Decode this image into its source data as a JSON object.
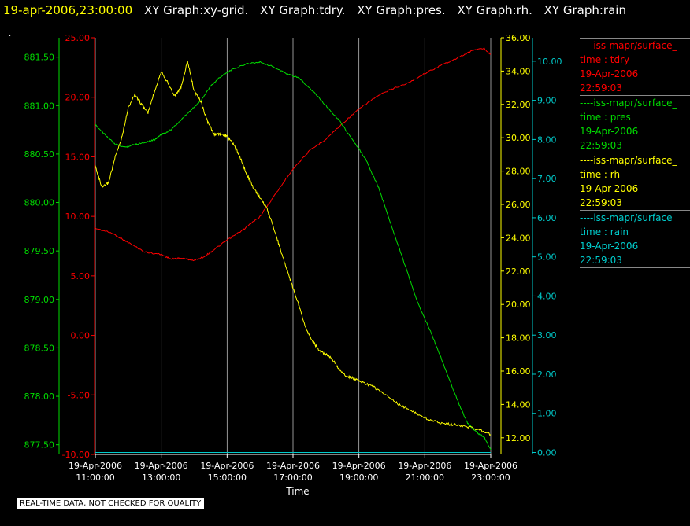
{
  "header": {
    "timestamp": "19-apr-2006,23:00:00",
    "graph_titles": [
      "XY Graph:xy-grid.",
      "XY Graph:tdry.",
      "XY Graph:pres.",
      "XY Graph:rh.",
      "XY Graph:rain"
    ]
  },
  "marker_text": ".",
  "quality_note": "REAL-TIME DATA, NOT CHECKED FOR QUALITY",
  "colors": {
    "tdry": "#ff0000",
    "pres": "#00dd00",
    "rh": "#ffff00",
    "rain": "#00cccc",
    "grid": "#bbbbbb"
  },
  "legend": [
    {
      "label": "----iss-mapr/surface_",
      "var": "time : tdry",
      "date": "19-Apr-2006",
      "time": "22:59:03",
      "color": "#ff0000"
    },
    {
      "label": "----iss-mapr/surface_",
      "var": "time : pres",
      "date": "19-Apr-2006",
      "time": "22:59:03",
      "color": "#00dd00"
    },
    {
      "label": "----iss-mapr/surface_",
      "var": "time : rh",
      "date": "19-Apr-2006",
      "time": "22:59:03",
      "color": "#ffff00"
    },
    {
      "label": "----iss-mapr/surface_",
      "var": "time : rain",
      "date": "19-Apr-2006",
      "time": "22:59:03",
      "color": "#00cccc"
    }
  ],
  "chart_data": {
    "type": "line",
    "xlabel": "Time",
    "xlim": [
      11,
      23
    ],
    "x_ticks": [
      {
        "x": 11,
        "date": "19-Apr-2006",
        "time": "11:00:00"
      },
      {
        "x": 13,
        "date": "19-Apr-2006",
        "time": "13:00:00"
      },
      {
        "x": 15,
        "date": "19-Apr-2006",
        "time": "15:00:00"
      },
      {
        "x": 17,
        "date": "19-Apr-2006",
        "time": "17:00:00"
      },
      {
        "x": 19,
        "date": "19-Apr-2006",
        "time": "19:00:00"
      },
      {
        "x": 21,
        "date": "19-Apr-2006",
        "time": "21:00:00"
      },
      {
        "x": 23,
        "date": "19-Apr-2006",
        "time": "23:00:00"
      }
    ],
    "grid": "vertical",
    "axes": {
      "pres": {
        "range": [
          877.4,
          881.7
        ],
        "ticks": [
          "877.50",
          "878.00",
          "878.50",
          "879.00",
          "879.50",
          "880.00",
          "880.50",
          "881.00",
          "881.50"
        ],
        "color": "#00dd00"
      },
      "tdry": {
        "range": [
          -10,
          25
        ],
        "ticks": [
          "-10.00",
          "-5.00",
          "0.00",
          "5.00",
          "10.00",
          "15.00",
          "20.00",
          "25.00"
        ],
        "color": "#ff0000"
      },
      "rh": {
        "range": [
          11,
          36
        ],
        "ticks": [
          "12.00",
          "14.00",
          "16.00",
          "18.00",
          "20.00",
          "22.00",
          "24.00",
          "26.00",
          "28.00",
          "30.00",
          "32.00",
          "34.00",
          "36.00"
        ],
        "color": "#ffff00"
      },
      "rain": {
        "range": [
          -0.05,
          10.6
        ],
        "ticks": [
          "0.00",
          "1.00",
          "2.00",
          "3.00",
          "4.00",
          "5.00",
          "6.00",
          "7.00",
          "8.00",
          "9.00",
          "10.00"
        ],
        "color": "#00cccc"
      }
    },
    "series": [
      {
        "key": "tdry",
        "axis": "tdry",
        "color": "#ff0000",
        "points": [
          [
            11.0,
            9.0
          ],
          [
            11.5,
            8.6
          ],
          [
            12.0,
            7.8
          ],
          [
            12.5,
            7.0
          ],
          [
            13.0,
            6.8
          ],
          [
            13.3,
            6.4
          ],
          [
            13.6,
            6.5
          ],
          [
            14.0,
            6.3
          ],
          [
            14.3,
            6.6
          ],
          [
            14.6,
            7.2
          ],
          [
            15.0,
            8.0
          ],
          [
            15.5,
            8.9
          ],
          [
            16.0,
            10.0
          ],
          [
            16.5,
            12.0
          ],
          [
            17.0,
            14.0
          ],
          [
            17.5,
            15.5
          ],
          [
            18.0,
            16.5
          ],
          [
            18.5,
            17.8
          ],
          [
            19.0,
            19.0
          ],
          [
            19.5,
            20.0
          ],
          [
            20.0,
            20.7
          ],
          [
            20.5,
            21.2
          ],
          [
            21.0,
            22.0
          ],
          [
            21.5,
            22.7
          ],
          [
            22.0,
            23.3
          ],
          [
            22.5,
            24.0
          ],
          [
            22.8,
            24.1
          ],
          [
            23.0,
            23.6
          ]
        ]
      },
      {
        "key": "pres",
        "axis": "pres",
        "color": "#00dd00",
        "points": [
          [
            11.0,
            880.8
          ],
          [
            11.3,
            880.7
          ],
          [
            11.6,
            880.6
          ],
          [
            11.9,
            880.57
          ],
          [
            12.2,
            880.6
          ],
          [
            12.5,
            880.62
          ],
          [
            12.8,
            880.65
          ],
          [
            13.0,
            880.7
          ],
          [
            13.3,
            880.75
          ],
          [
            13.6,
            880.85
          ],
          [
            13.9,
            880.95
          ],
          [
            14.2,
            881.05
          ],
          [
            14.5,
            881.2
          ],
          [
            14.8,
            881.3
          ],
          [
            15.2,
            881.38
          ],
          [
            15.6,
            881.43
          ],
          [
            16.0,
            881.45
          ],
          [
            16.4,
            881.4
          ],
          [
            16.8,
            881.33
          ],
          [
            17.2,
            881.28
          ],
          [
            17.6,
            881.15
          ],
          [
            18.0,
            881.0
          ],
          [
            18.4,
            880.85
          ],
          [
            18.8,
            880.65
          ],
          [
            19.2,
            880.45
          ],
          [
            19.6,
            880.15
          ],
          [
            20.0,
            879.75
          ],
          [
            20.4,
            879.35
          ],
          [
            20.8,
            878.95
          ],
          [
            21.2,
            878.65
          ],
          [
            21.6,
            878.3
          ],
          [
            22.0,
            877.95
          ],
          [
            22.3,
            877.72
          ],
          [
            22.6,
            877.62
          ],
          [
            22.8,
            877.58
          ],
          [
            23.0,
            877.45
          ]
        ]
      },
      {
        "key": "rh",
        "axis": "rh",
        "color": "#ffff00",
        "points": [
          [
            11.0,
            28.3
          ],
          [
            11.2,
            27.0
          ],
          [
            11.4,
            27.3
          ],
          [
            11.6,
            28.8
          ],
          [
            11.8,
            30.0
          ],
          [
            12.0,
            31.8
          ],
          [
            12.2,
            32.6
          ],
          [
            12.4,
            32.0
          ],
          [
            12.6,
            31.5
          ],
          [
            12.8,
            32.8
          ],
          [
            13.0,
            34.0
          ],
          [
            13.2,
            33.3
          ],
          [
            13.4,
            32.5
          ],
          [
            13.6,
            33.0
          ],
          [
            13.8,
            34.6
          ],
          [
            14.0,
            32.8
          ],
          [
            14.2,
            32.2
          ],
          [
            14.4,
            31.0
          ],
          [
            14.6,
            30.2
          ],
          [
            14.8,
            30.2
          ],
          [
            15.0,
            30.1
          ],
          [
            15.2,
            29.6
          ],
          [
            15.4,
            28.8
          ],
          [
            15.6,
            27.8
          ],
          [
            15.8,
            27.0
          ],
          [
            16.0,
            26.4
          ],
          [
            16.2,
            25.8
          ],
          [
            16.4,
            24.7
          ],
          [
            16.6,
            23.4
          ],
          [
            16.8,
            22.2
          ],
          [
            17.0,
            21.0
          ],
          [
            17.2,
            19.8
          ],
          [
            17.4,
            18.5
          ],
          [
            17.6,
            17.8
          ],
          [
            17.8,
            17.2
          ],
          [
            18.0,
            17.0
          ],
          [
            18.2,
            16.7
          ],
          [
            18.4,
            16.1
          ],
          [
            18.6,
            15.7
          ],
          [
            18.8,
            15.6
          ],
          [
            19.0,
            15.4
          ],
          [
            19.4,
            15.1
          ],
          [
            19.8,
            14.6
          ],
          [
            20.2,
            14.0
          ],
          [
            20.6,
            13.6
          ],
          [
            21.0,
            13.2
          ],
          [
            21.4,
            12.9
          ],
          [
            21.8,
            12.8
          ],
          [
            22.2,
            12.7
          ],
          [
            22.6,
            12.5
          ],
          [
            23.0,
            12.2
          ]
        ]
      },
      {
        "key": "rain",
        "axis": "rain",
        "color": "#00cccc",
        "points": [
          [
            11.0,
            0.0
          ],
          [
            23.0,
            0.0
          ]
        ]
      }
    ]
  }
}
